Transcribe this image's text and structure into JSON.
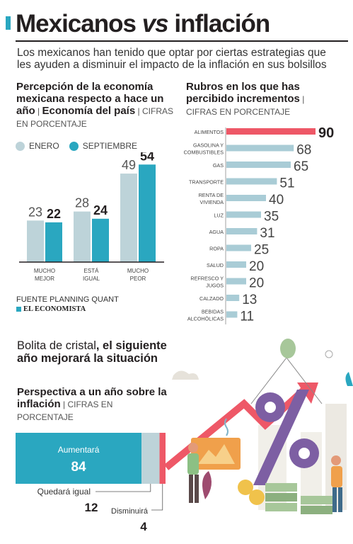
{
  "header": {
    "title_a": "Mexicanos ",
    "title_b": "vs",
    "title_c": " inflación",
    "subtitle": "Los mexicanos han tenido que optar por ciertas estrategias que les ayuden a disminuir el impacto de la inflación en sus bolsillos"
  },
  "section1": {
    "title_a": "Percepción de la economía mexicana respecto a hace un año",
    "title_b": "Economía del país",
    "unit": "CIFRAS EN PORCENTAJE"
  },
  "section2": {
    "title": "Rubros en los que has percibido incrementos",
    "unit": "CIFRAS EN PORCENTAJE"
  },
  "section3": {
    "lead": "Bolita de cristal",
    "lead_bold": ", el siguiente año mejorará la situación",
    "title": "Perspectiva a un año sobre la inflación",
    "unit": "CIFRAS EN PORCENTAJE"
  },
  "source": "FUENTE PLANNING QUANT",
  "logo": "EL ECONOMISTA",
  "colors": {
    "accent": "#2aa7c0",
    "light": "#bdd3d9",
    "highlight": "#ee5867",
    "dark": "#231f20"
  },
  "chart_data": [
    {
      "type": "bar",
      "categories": [
        "MUCHO MEJOR",
        "ESTÁ IGUAL",
        "MUCHO PEOR"
      ],
      "series": [
        {
          "name": "ENERO",
          "values": [
            23,
            28,
            49
          ]
        },
        {
          "name": "SEPTIEMBRE",
          "values": [
            22,
            24,
            54
          ]
        }
      ]
    },
    {
      "type": "bar",
      "orientation": "horizontal",
      "categories": [
        "ALIMENTOS",
        "GASOLINA Y COMBUSTIBLES",
        "GAS",
        "TRANSPORTE",
        "RENTA DE VIVIENDA",
        "LUZ",
        "AGUA",
        "ROPA",
        "SALUD",
        "REFRESCO Y JUGOS",
        "CALZADO",
        "BEBIDAS ALCOHÓLICAS"
      ],
      "values": [
        90,
        68,
        65,
        51,
        40,
        35,
        31,
        25,
        20,
        20,
        13,
        11
      ]
    },
    {
      "type": "bar",
      "orientation": "stacked-horizontal",
      "categories": [
        "Aumentará",
        "Quedará igual",
        "Disminuirá"
      ],
      "values": [
        84,
        12,
        4
      ]
    }
  ]
}
